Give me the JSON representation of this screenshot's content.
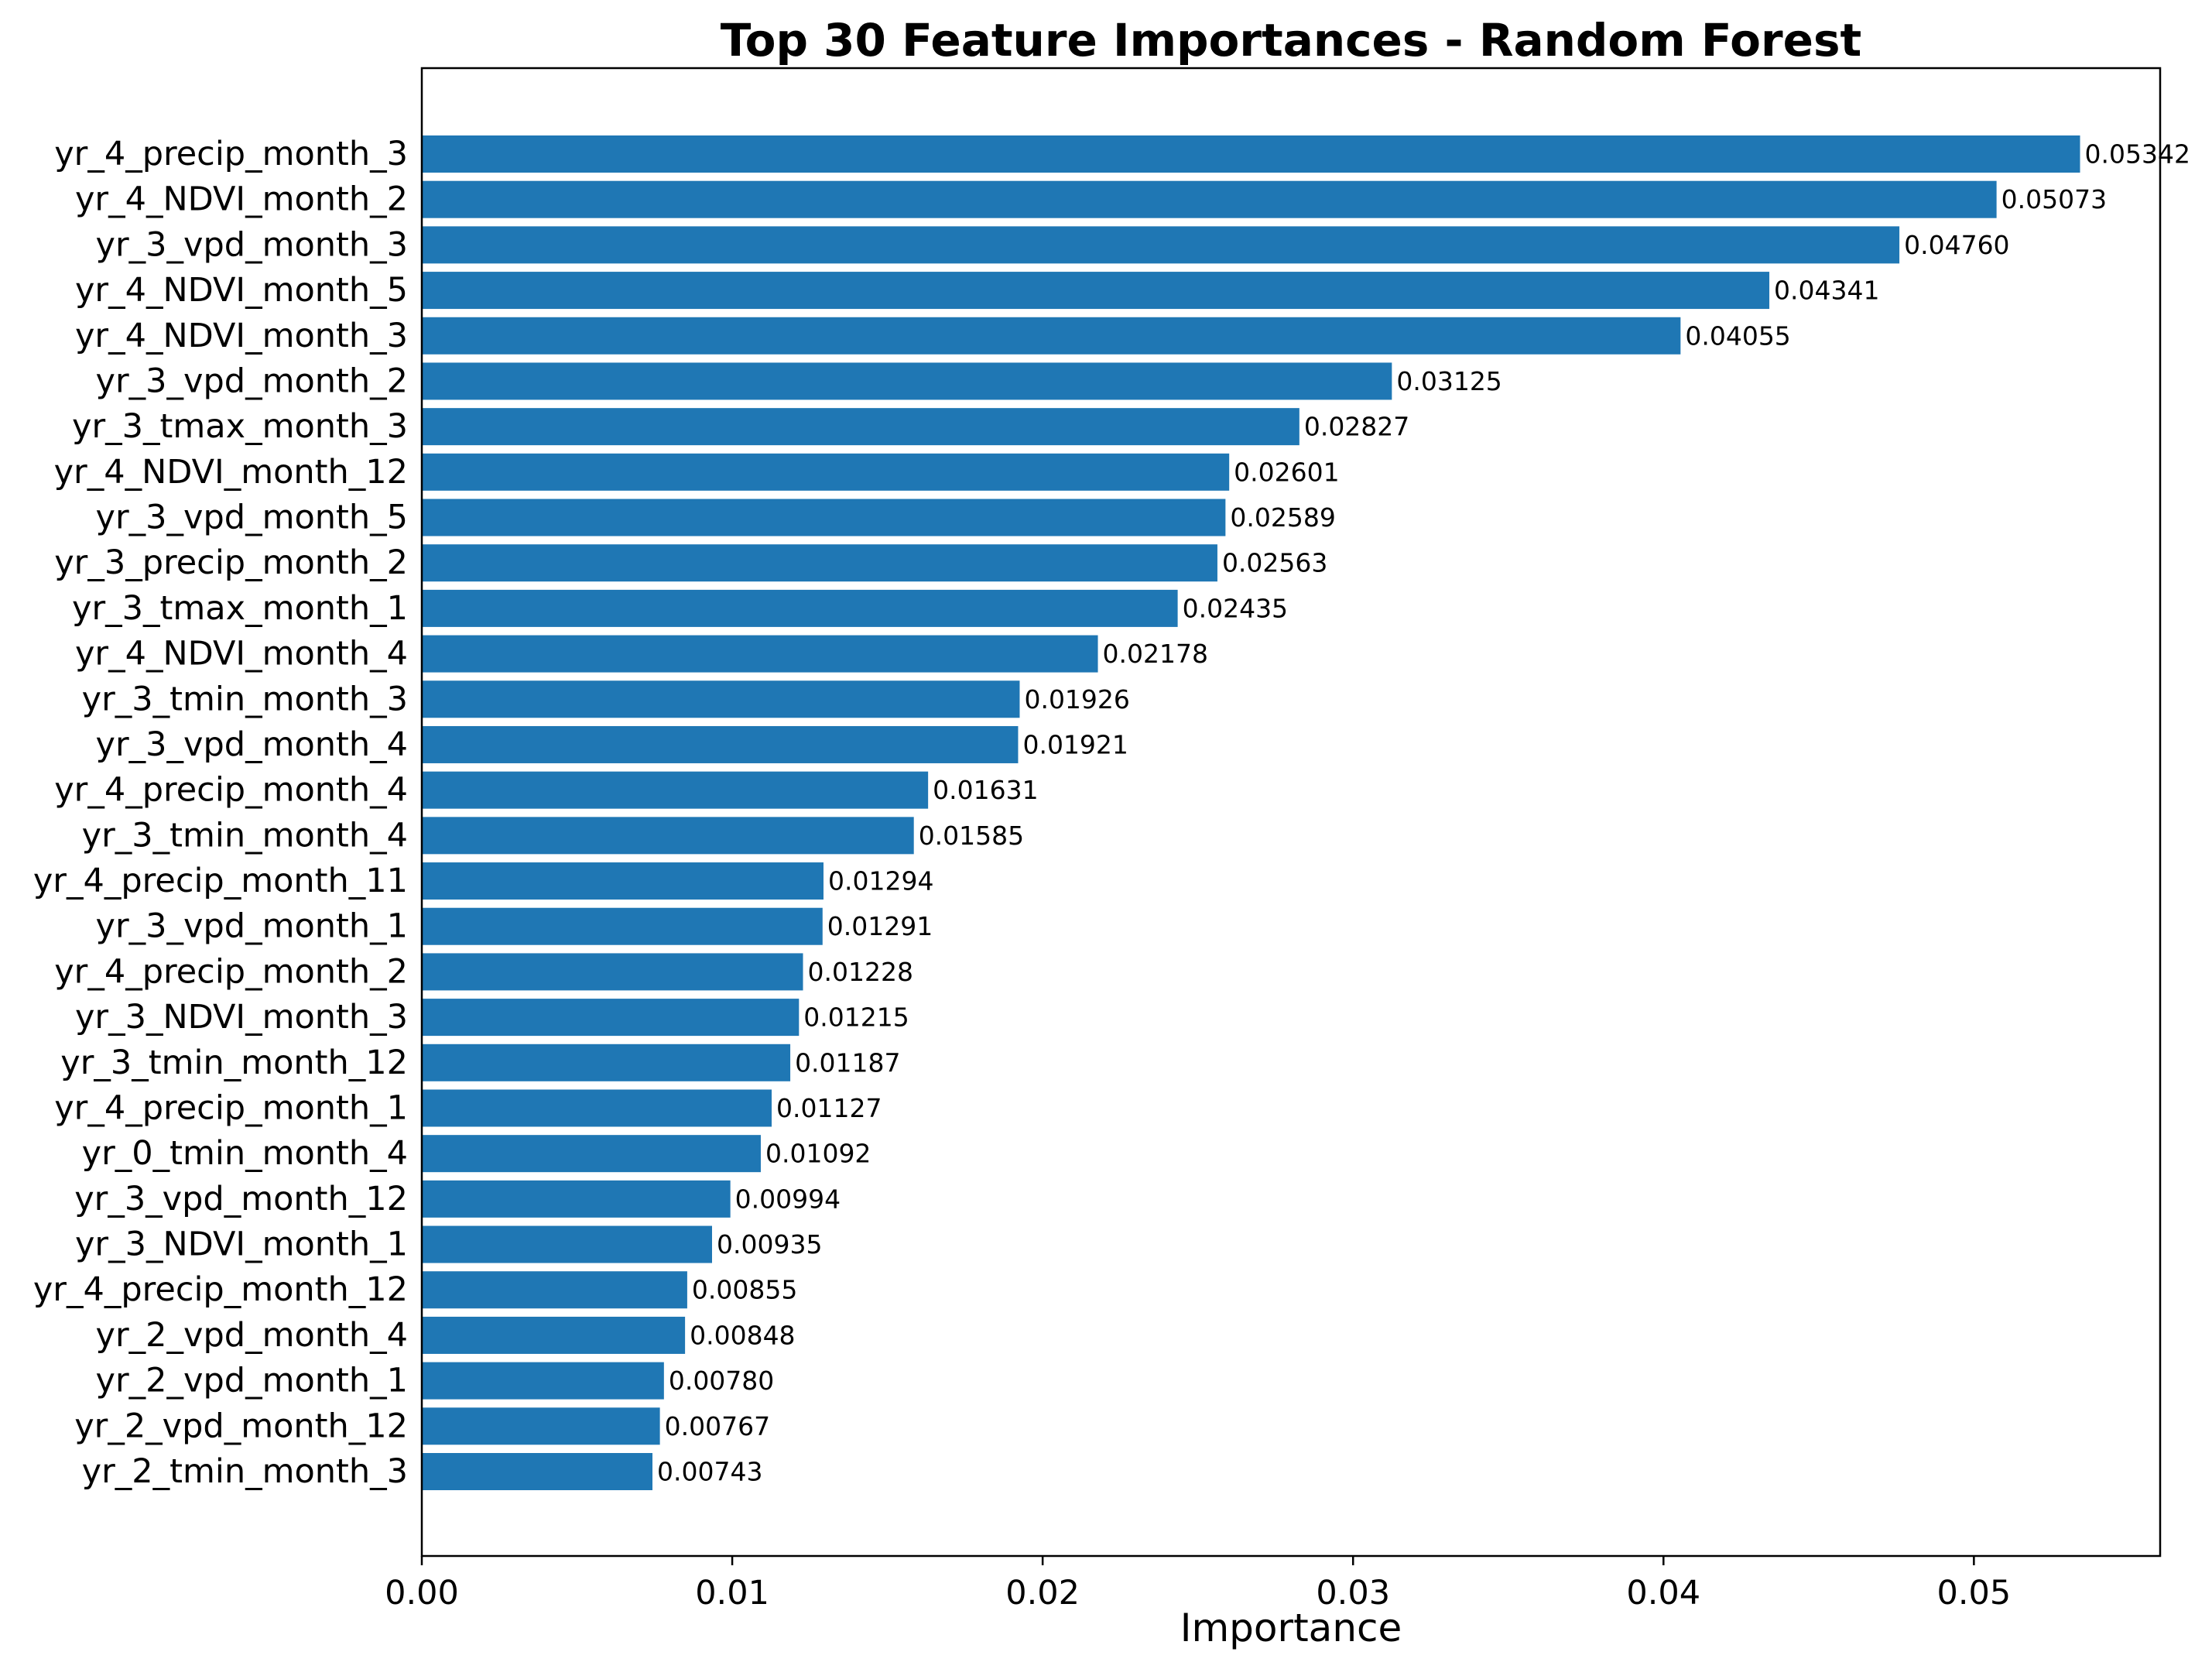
{
  "chart_data": {
    "type": "bar",
    "orientation": "horizontal",
    "title": "Top 30 Feature Importances - Random Forest",
    "xlabel": "Importance",
    "ylabel": "",
    "xlim": [
      0,
      0.056
    ],
    "xticks": [
      0.0,
      0.01,
      0.02,
      0.03,
      0.04,
      0.05
    ],
    "xtick_labels": [
      "0.00",
      "0.01",
      "0.02",
      "0.03",
      "0.04",
      "0.05"
    ],
    "grid": false,
    "bar_color": "#1f77b4",
    "categories": [
      "yr_4_precip_month_3",
      "yr_4_NDVI_month_2",
      "yr_3_vpd_month_3",
      "yr_4_NDVI_month_5",
      "yr_4_NDVI_month_3",
      "yr_3_vpd_month_2",
      "yr_3_tmax_month_3",
      "yr_4_NDVI_month_12",
      "yr_3_vpd_month_5",
      "yr_3_precip_month_2",
      "yr_3_tmax_month_1",
      "yr_4_NDVI_month_4",
      "yr_3_tmin_month_3",
      "yr_3_vpd_month_4",
      "yr_4_precip_month_4",
      "yr_3_tmin_month_4",
      "yr_4_precip_month_11",
      "yr_3_vpd_month_1",
      "yr_4_precip_month_2",
      "yr_3_NDVI_month_3",
      "yr_3_tmin_month_12",
      "yr_4_precip_month_1",
      "yr_0_tmin_month_4",
      "yr_3_vpd_month_12",
      "yr_3_NDVI_month_1",
      "yr_4_precip_month_12",
      "yr_2_vpd_month_4",
      "yr_2_vpd_month_1",
      "yr_2_vpd_month_12",
      "yr_2_tmin_month_3"
    ],
    "values": [
      0.05342,
      0.05073,
      0.0476,
      0.04341,
      0.04055,
      0.03125,
      0.02827,
      0.02601,
      0.02589,
      0.02563,
      0.02435,
      0.02178,
      0.01926,
      0.01921,
      0.01631,
      0.01585,
      0.01294,
      0.01291,
      0.01228,
      0.01215,
      0.01187,
      0.01127,
      0.01092,
      0.00994,
      0.00935,
      0.00855,
      0.00848,
      0.0078,
      0.00767,
      0.00743
    ],
    "value_labels": [
      "0.05342",
      "0.05073",
      "0.04760",
      "0.04341",
      "0.04055",
      "0.03125",
      "0.02827",
      "0.02601",
      "0.02589",
      "0.02563",
      "0.02435",
      "0.02178",
      "0.01926",
      "0.01921",
      "0.01631",
      "0.01585",
      "0.01294",
      "0.01291",
      "0.01228",
      "0.01215",
      "0.01187",
      "0.01127",
      "0.01092",
      "0.00994",
      "0.00935",
      "0.00855",
      "0.00848",
      "0.00780",
      "0.00767",
      "0.00743"
    ]
  }
}
